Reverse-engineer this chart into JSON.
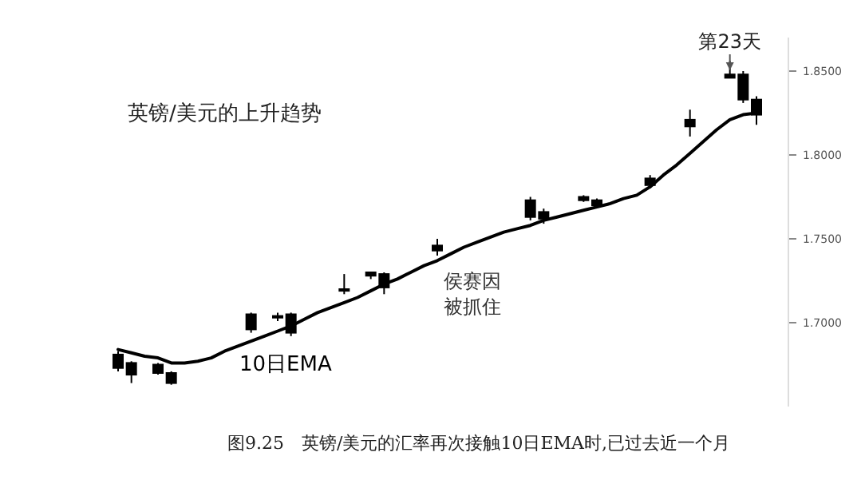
{
  "chart_data": {
    "type": "candlestick",
    "title": "英镑/美元的上升趋势",
    "color": "#000000",
    "categories": [
      null,
      null,
      null,
      null,
      null,
      null,
      null,
      null,
      null,
      null,
      null,
      null,
      null,
      null,
      null,
      null,
      null,
      null,
      null,
      null,
      null,
      null,
      null,
      null,
      null,
      null,
      null,
      null,
      null,
      null,
      null,
      null,
      null,
      null,
      null,
      null,
      null,
      null,
      null,
      null,
      null,
      null,
      null,
      null,
      null,
      null,
      null,
      null,
      null
    ],
    "ohlc": [
      [
        1.681,
        1.683,
        1.671,
        1.673
      ],
      [
        1.676,
        1.677,
        1.664,
        1.669
      ],
      null,
      [
        1.675,
        1.676,
        1.669,
        1.67
      ],
      [
        1.67,
        1.671,
        1.663,
        1.664
      ],
      null,
      null,
      null,
      null,
      null,
      [
        1.705,
        1.706,
        1.694,
        1.696
      ],
      null,
      [
        1.704,
        1.706,
        1.701,
        1.703
      ],
      [
        1.705,
        1.706,
        1.692,
        1.694
      ],
      null,
      null,
      null,
      [
        1.72,
        1.729,
        1.717,
        1.719
      ],
      null,
      [
        1.73,
        1.73,
        1.726,
        1.728
      ],
      [
        1.729,
        1.73,
        1.717,
        1.721
      ],
      null,
      null,
      null,
      [
        1.746,
        1.75,
        1.74,
        1.743
      ],
      null,
      null,
      null,
      null,
      null,
      null,
      [
        1.773,
        1.775,
        1.761,
        1.763
      ],
      [
        1.766,
        1.768,
        1.759,
        1.762
      ],
      null,
      null,
      [
        1.775,
        1.776,
        1.772,
        1.773
      ],
      [
        1.773,
        1.774,
        1.769,
        1.77
      ],
      null,
      null,
      null,
      [
        1.786,
        1.788,
        1.78,
        1.782
      ],
      null,
      null,
      [
        1.821,
        1.827,
        1.811,
        1.817
      ],
      null,
      null,
      [
        1.848,
        1.856,
        1.846,
        1.846
      ],
      [
        1.848,
        1.85,
        1.831,
        1.833
      ],
      [
        1.833,
        1.835,
        1.818,
        1.824
      ]
    ],
    "series": [
      {
        "type": "line",
        "name": "10日EMA",
        "color": "#000000",
        "values": [
          1.684,
          1.682,
          1.68,
          1.679,
          1.676,
          1.676,
          1.677,
          1.679,
          1.683,
          1.686,
          1.689,
          1.692,
          1.695,
          1.698,
          1.702,
          1.706,
          1.709,
          1.712,
          1.715,
          1.719,
          1.723,
          1.726,
          1.73,
          1.734,
          1.737,
          1.741,
          1.745,
          1.748,
          1.751,
          1.754,
          1.756,
          1.758,
          1.761,
          1.763,
          1.765,
          1.767,
          1.769,
          1.771,
          1.774,
          1.776,
          1.781,
          1.788,
          1.794,
          1.801,
          1.808,
          1.815,
          1.821,
          1.824,
          1.825
        ]
      }
    ],
    "ylim": [
      1.65,
      1.87
    ],
    "yticks": [
      {
        "value": 1.7,
        "label": "1.7000"
      },
      {
        "value": 1.75,
        "label": "1.7500"
      },
      {
        "value": 1.8,
        "label": "1.8000"
      },
      {
        "value": 1.85,
        "label": "1.8500"
      }
    ],
    "tick_labels": "y",
    "annotations": [
      "第23天",
      "侯赛因被抓住",
      "图9.25　英镑/美元的汇率再次接触10日EMA时,已过去近一个月"
    ]
  }
}
